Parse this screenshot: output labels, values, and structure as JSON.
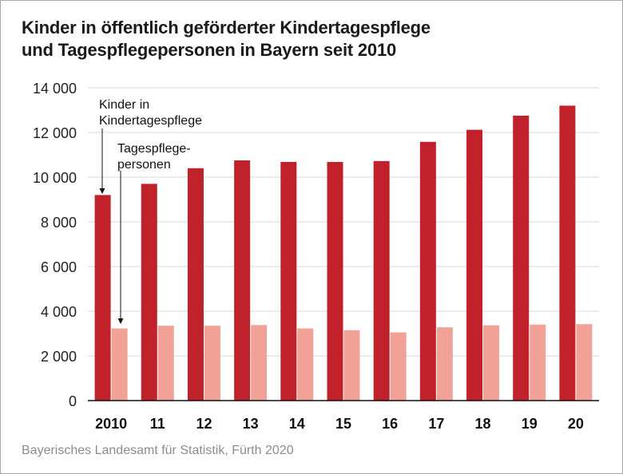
{
  "title_line1": "Kinder in öffentlich geförderter Kindertagespflege",
  "title_line2": "und Tagespflegepersonen in Bayern seit 2010",
  "source": "Bayerisches Landesamt für Statistik, Fürth 2020",
  "annotations": {
    "children_line1": "Kinder in",
    "children_line2": "Kindertagespflege",
    "persons_line1": "Tagespflege-",
    "persons_line2": "personen"
  },
  "colors": {
    "children": "#c0212a",
    "persons": "#f1a195",
    "grid": "#d9d9d9"
  },
  "chart_data": {
    "type": "bar",
    "title": "Kinder in öffentlich geförderter Kindertagespflege und Tagespflegepersonen in Bayern seit 2010",
    "categories": [
      "2010",
      "11",
      "12",
      "13",
      "14",
      "15",
      "16",
      "17",
      "18",
      "19",
      "20"
    ],
    "series": [
      {
        "name": "Kinder in Kindertagespflege",
        "values": [
          9200,
          9700,
          10400,
          10750,
          10680,
          10680,
          10720,
          11580,
          12120,
          12750,
          13200
        ]
      },
      {
        "name": "Tagespflegepersonen",
        "values": [
          3230,
          3350,
          3350,
          3380,
          3230,
          3150,
          3050,
          3280,
          3370,
          3400,
          3420
        ]
      }
    ],
    "ylim": [
      0,
      14000
    ],
    "yticks": [
      0,
      2000,
      4000,
      6000,
      8000,
      10000,
      12000,
      14000
    ],
    "ytick_labels": [
      "0",
      "2 000",
      "4 000",
      "6 000",
      "8 000",
      "10 000",
      "12 000",
      "14 000"
    ],
    "grid": true,
    "legend": "annotations with arrows on first category"
  }
}
